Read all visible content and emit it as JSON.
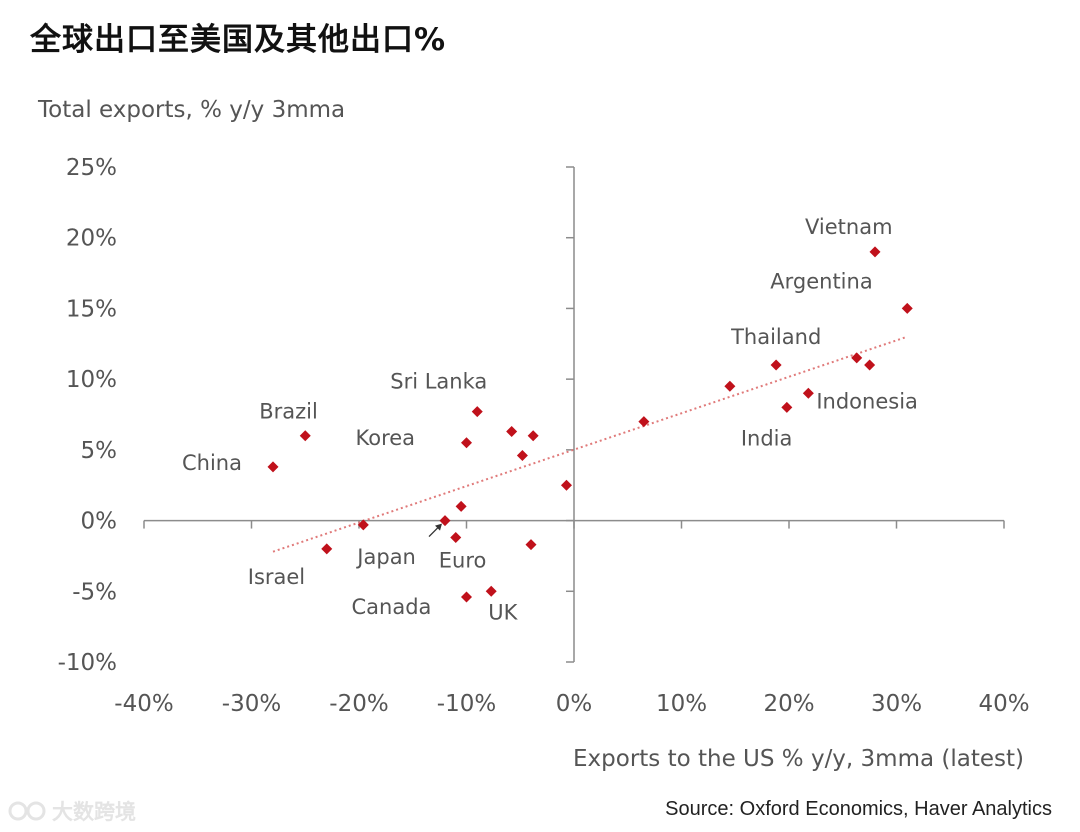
{
  "title": "全球出口至美国及其他出口%",
  "source": "Source: Oxford Economics, Haver Analytics",
  "watermark": "大数跨境",
  "chart_data": {
    "type": "scatter",
    "title": "",
    "xlabel": "Exports to the US % y/y, 3mma (latest)",
    "ylabel": "Total exports, % y/y 3mma",
    "xlim": [
      -40,
      40
    ],
    "ylim": [
      -10,
      25
    ],
    "x_ticks": [
      "-40%",
      "-30%",
      "-20%",
      "-10%",
      "0%",
      "10%",
      "20%",
      "30%",
      "40%"
    ],
    "y_ticks": [
      "25%",
      "20%",
      "15%",
      "10%",
      "5%",
      "0%",
      "-5%",
      "-10%"
    ],
    "marker_color": "#c0111b",
    "trendline": {
      "style": "dotted",
      "color": "#e07a7a",
      "from": [
        -28,
        -2.2
      ],
      "to": [
        31,
        13
      ]
    },
    "points": [
      {
        "x": 28,
        "y": 19,
        "label": "Vietnam"
      },
      {
        "x": 31,
        "y": 15,
        "label": "Argentina"
      },
      {
        "x": 18.8,
        "y": 11,
        "label": "Thailand"
      },
      {
        "x": 26.3,
        "y": 11.5,
        "label": ""
      },
      {
        "x": 27.5,
        "y": 11,
        "label": ""
      },
      {
        "x": 14.5,
        "y": 9.5,
        "label": ""
      },
      {
        "x": 21.8,
        "y": 9,
        "label": "Indonesia"
      },
      {
        "x": 19.8,
        "y": 8,
        "label": "India"
      },
      {
        "x": 6.5,
        "y": 7,
        "label": ""
      },
      {
        "x": -25,
        "y": 6,
        "label": "Brazil"
      },
      {
        "x": -28,
        "y": 3.8,
        "label": "China"
      },
      {
        "x": -9,
        "y": 7.7,
        "label": "Sri Lanka"
      },
      {
        "x": -10,
        "y": 5.5,
        "label": "Korea"
      },
      {
        "x": -5.8,
        "y": 6.3,
        "label": ""
      },
      {
        "x": -3.8,
        "y": 6,
        "label": ""
      },
      {
        "x": -4.8,
        "y": 4.6,
        "label": ""
      },
      {
        "x": -0.7,
        "y": 2.5,
        "label": ""
      },
      {
        "x": -10.5,
        "y": 1,
        "label": ""
      },
      {
        "x": -12,
        "y": 0,
        "label": ""
      },
      {
        "x": -19.6,
        "y": -0.3,
        "label": "Japan"
      },
      {
        "x": -11,
        "y": -1.2,
        "label": "Euro"
      },
      {
        "x": -23,
        "y": -2,
        "label": "Israel"
      },
      {
        "x": -4,
        "y": -1.7,
        "label": ""
      },
      {
        "x": -7.7,
        "y": -5,
        "label": "UK"
      },
      {
        "x": -10,
        "y": -5.4,
        "label": "Canada"
      }
    ]
  }
}
